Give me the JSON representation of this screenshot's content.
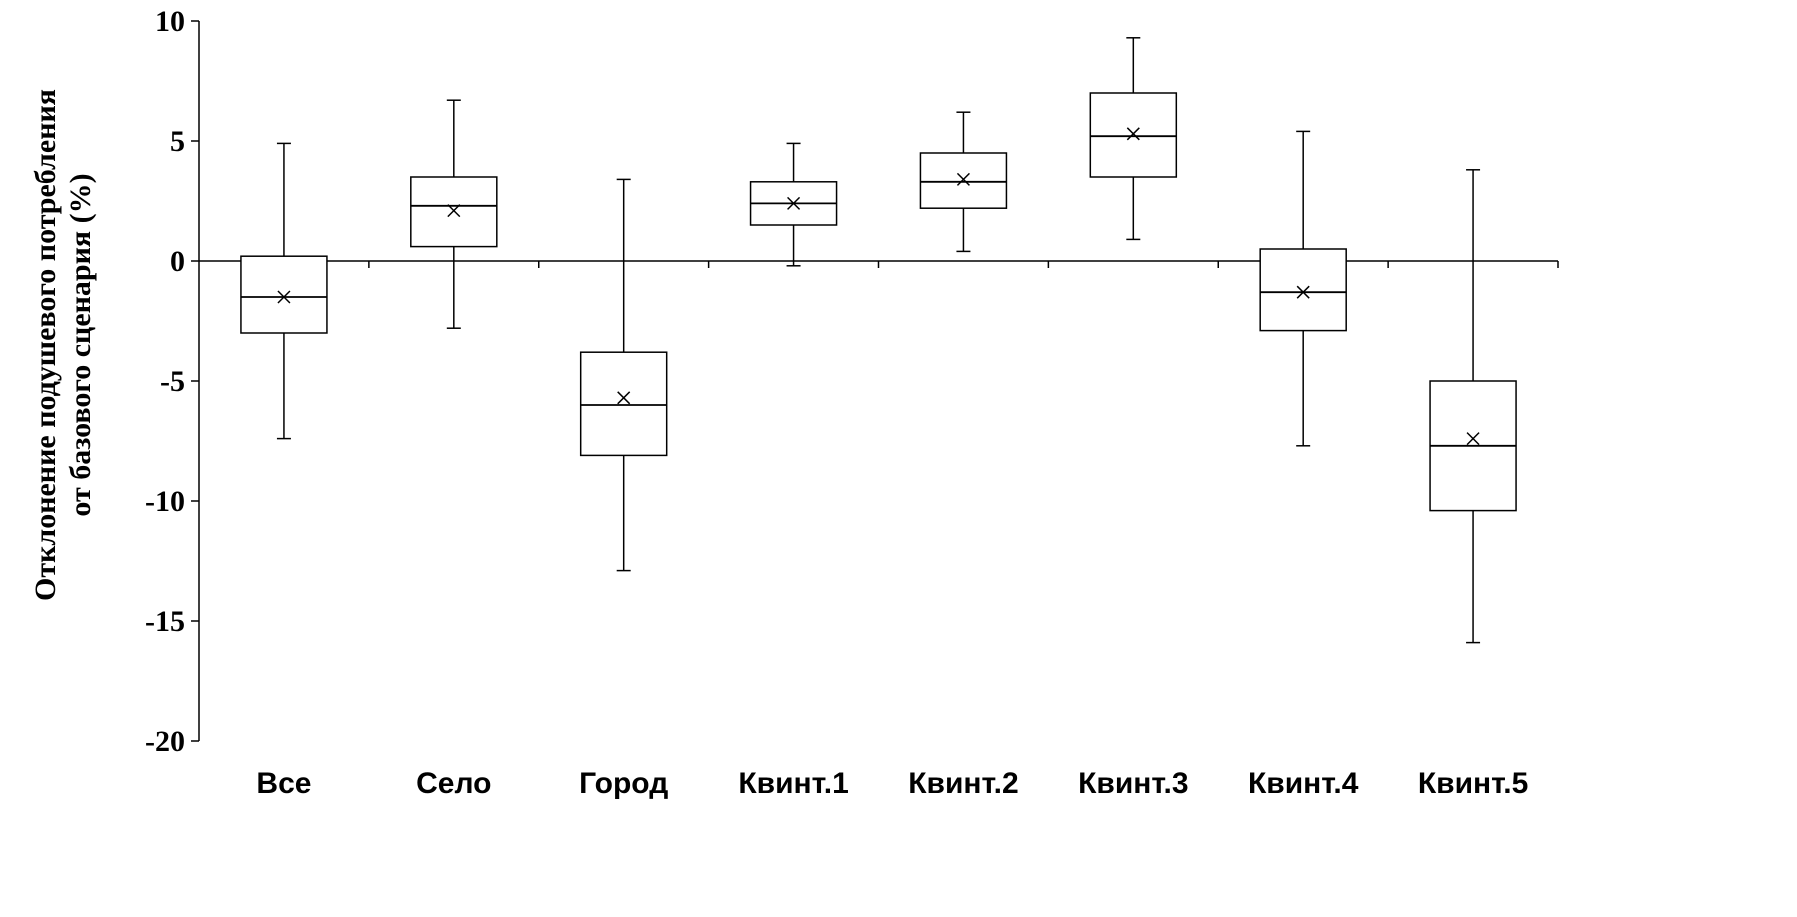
{
  "chart_data": {
    "type": "boxplot",
    "title": "",
    "ylabel_lines": [
      "Отклонение подушевого потребления",
      "от базового сценария (%)"
    ],
    "xlabel": "",
    "ylim": [
      -20,
      10
    ],
    "yticks": [
      10,
      5,
      0,
      -5,
      -10,
      -15,
      -20
    ],
    "ytick_labels": [
      "10",
      "5",
      "0",
      "-5",
      "-10",
      "-15",
      "-20"
    ],
    "categories": [
      "Все",
      "Село",
      "Город",
      "Квинт.1",
      "Квинт.2",
      "Квинт.3",
      "Квинт.4",
      "Квинт.5"
    ],
    "boxes": [
      {
        "whisker_low": -7.4,
        "q1": -3.0,
        "median": -1.5,
        "q3": 0.2,
        "whisker_high": 4.9,
        "mean": -1.5
      },
      {
        "whisker_low": -2.8,
        "q1": 0.6,
        "median": 2.3,
        "q3": 3.5,
        "whisker_high": 6.7,
        "mean": 2.1
      },
      {
        "whisker_low": -12.9,
        "q1": -8.1,
        "median": -6.0,
        "q3": -3.8,
        "whisker_high": 3.4,
        "mean": -5.7
      },
      {
        "whisker_low": -0.2,
        "q1": 1.5,
        "median": 2.4,
        "q3": 3.3,
        "whisker_high": 4.9,
        "mean": 2.4
      },
      {
        "whisker_low": 0.4,
        "q1": 2.2,
        "median": 3.3,
        "q3": 4.5,
        "whisker_high": 6.2,
        "mean": 3.4
      },
      {
        "whisker_low": 0.9,
        "q1": 3.5,
        "median": 5.2,
        "q3": 7.0,
        "whisker_high": 9.3,
        "mean": 5.3
      },
      {
        "whisker_low": -7.7,
        "q1": -2.9,
        "median": -1.3,
        "q3": 0.5,
        "whisker_high": 5.4,
        "mean": -1.3
      },
      {
        "whisker_low": -15.9,
        "q1": -10.4,
        "median": -7.7,
        "q3": -5.0,
        "whisker_high": 3.8,
        "mean": -7.4
      }
    ],
    "grid": false,
    "legend": "none",
    "mean_marker": "x",
    "colors": {
      "line": "#000000",
      "box_fill": "#ffffff",
      "background": "#ffffff"
    }
  }
}
